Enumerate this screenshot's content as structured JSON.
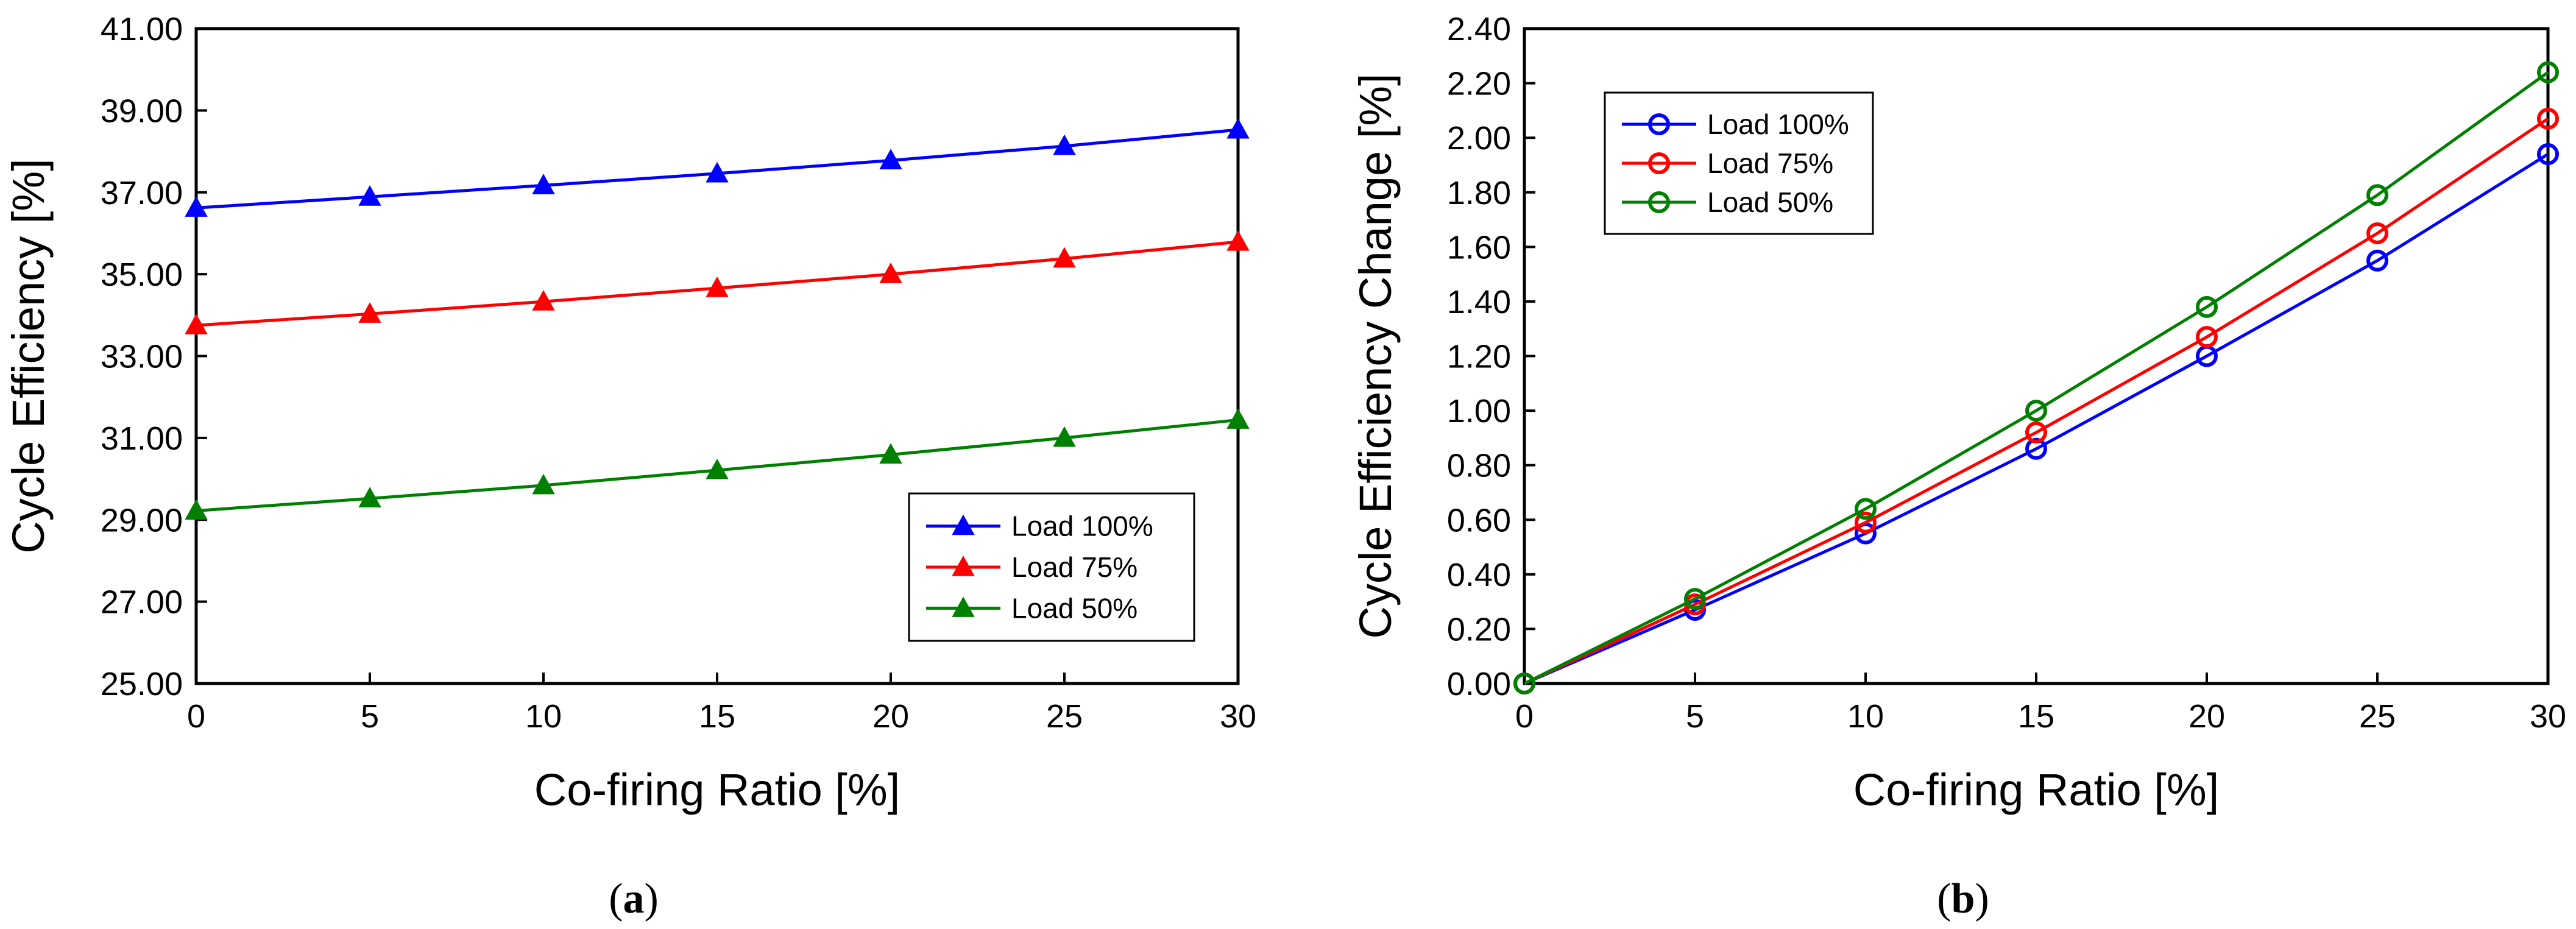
{
  "chart_data": [
    {
      "type": "line",
      "panel_label": "a",
      "xlabel": "Co-firing Ratio [%]",
      "ylabel": "Cycle Efficiency [%]",
      "xlim": [
        0,
        30
      ],
      "ylim": [
        25,
        41
      ],
      "x_ticks": [
        0,
        5,
        10,
        15,
        20,
        25,
        30
      ],
      "x_tick_labels": [
        "0",
        "5",
        "10",
        "15",
        "20",
        "25",
        "30"
      ],
      "y_ticks": [
        25,
        27,
        29,
        31,
        33,
        35,
        37,
        39,
        41
      ],
      "y_tick_labels": [
        "25.00",
        "27.00",
        "29.00",
        "31.00",
        "33.00",
        "35.00",
        "37.00",
        "39.00",
        "41.00"
      ],
      "grid": false,
      "marker": "triangle",
      "legend_position": "bottom-right",
      "x": [
        0,
        5,
        10,
        15,
        20,
        25,
        30
      ],
      "series": [
        {
          "name": "Load 100%",
          "color": "#0000ff",
          "values": [
            36.62,
            36.89,
            37.17,
            37.46,
            37.78,
            38.13,
            38.53
          ]
        },
        {
          "name": "Load 75%",
          "color": "#ff0000",
          "values": [
            33.75,
            34.03,
            34.33,
            34.66,
            35.0,
            35.38,
            35.79
          ]
        },
        {
          "name": "Load 50%",
          "color": "#008000",
          "values": [
            29.22,
            29.52,
            29.84,
            30.21,
            30.59,
            31.0,
            31.44
          ]
        }
      ]
    },
    {
      "type": "line",
      "panel_label": "b",
      "xlabel": "Co-firing Ratio [%]",
      "ylabel": "Cycle Efficiency Change [%]",
      "xlim": [
        0,
        30
      ],
      "ylim": [
        0,
        2.4
      ],
      "x_ticks": [
        0,
        5,
        10,
        15,
        20,
        25,
        30
      ],
      "x_tick_labels": [
        "0",
        "5",
        "10",
        "15",
        "20",
        "25",
        "30"
      ],
      "y_ticks": [
        0,
        0.2,
        0.4,
        0.6,
        0.8,
        1.0,
        1.2,
        1.4,
        1.6,
        1.8,
        2.0,
        2.2,
        2.4
      ],
      "y_tick_labels": [
        "0.00",
        "0.20",
        "0.40",
        "0.60",
        "0.80",
        "1.00",
        "1.20",
        "1.40",
        "1.60",
        "1.80",
        "2.00",
        "2.20",
        "2.40"
      ],
      "grid": false,
      "marker": "circle",
      "legend_position": "top-left",
      "x": [
        0,
        5,
        10,
        15,
        20,
        25,
        30
      ],
      "series": [
        {
          "name": "Load 100%",
          "color": "#0000ff",
          "values": [
            0.0,
            0.27,
            0.55,
            0.86,
            1.2,
            1.55,
            1.94
          ]
        },
        {
          "name": "Load 75%",
          "color": "#ff0000",
          "values": [
            0.0,
            0.29,
            0.59,
            0.92,
            1.27,
            1.65,
            2.07
          ]
        },
        {
          "name": "Load 50%",
          "color": "#008000",
          "values": [
            0.0,
            0.31,
            0.64,
            1.0,
            1.38,
            1.79,
            2.24
          ]
        }
      ]
    }
  ]
}
